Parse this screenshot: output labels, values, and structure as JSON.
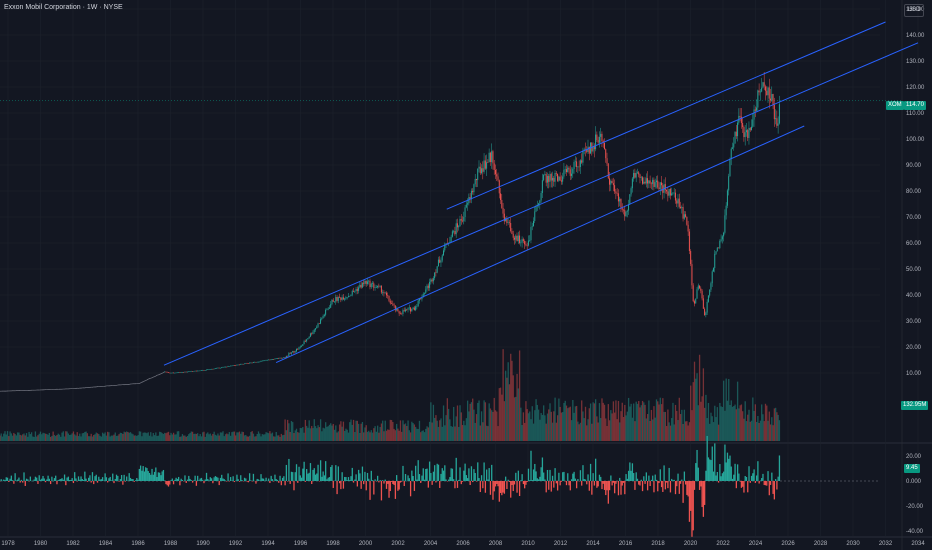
{
  "header": {
    "title": "Exxon Mobil Corporation · 1W · NYSE",
    "currency": "USD"
  },
  "price_tags": {
    "symbol": "XOM",
    "last_price": "114.70",
    "volume_value": "132.95M",
    "oscillator_value": "9.45"
  },
  "colors": {
    "background": "#131722",
    "up": "#26a69a",
    "down": "#ef5350",
    "channel": "#2962ff",
    "grid": "#1e222d",
    "last_price_tag": "#089981"
  },
  "chart_data": [
    {
      "type": "line",
      "name": "price-pane",
      "series_kind": "candlestick (weekly)",
      "x_unit": "year",
      "x_tick_labels": [
        "1978",
        "1980",
        "1982",
        "1984",
        "1986",
        "1988",
        "1990",
        "1992",
        "1994",
        "1996",
        "1998",
        "2000",
        "2002",
        "2004",
        "2006",
        "2008",
        "2010",
        "2012",
        "2014",
        "2016",
        "2018",
        "2020",
        "2022",
        "2024",
        "2026",
        "2028",
        "2030",
        "2032",
        "2034"
      ],
      "y_tick_labels": [
        "150.00",
        "140.00",
        "130.00",
        "120.00",
        "110.00",
        "100.00",
        "90.00",
        "80.00",
        "70.00",
        "60.00",
        "50.00",
        "40.00",
        "30.00",
        "20.00",
        "10.00"
      ],
      "ylim": [
        10,
        150
      ],
      "last_price": 114.7,
      "price_path": [
        [
          1977.5,
          3
        ],
        [
          1980,
          3.5
        ],
        [
          1982,
          4
        ],
        [
          1984,
          5
        ],
        [
          1986,
          6
        ],
        [
          1987.6,
          10.5
        ],
        [
          1988,
          10
        ],
        [
          1990,
          11
        ],
        [
          1992,
          13
        ],
        [
          1994,
          15
        ],
        [
          1995,
          16
        ],
        [
          1996,
          20
        ],
        [
          1997,
          28
        ],
        [
          1998,
          38
        ],
        [
          1999,
          40
        ],
        [
          2000,
          45
        ],
        [
          2001,
          42
        ],
        [
          2002,
          33
        ],
        [
          2003,
          35
        ],
        [
          2004,
          45
        ],
        [
          2005,
          60
        ],
        [
          2006,
          70
        ],
        [
          2007,
          88
        ],
        [
          2007.8,
          94
        ],
        [
          2008.5,
          70
        ],
        [
          2009.2,
          62
        ],
        [
          2010,
          60
        ],
        [
          2011,
          85
        ],
        [
          2012,
          85
        ],
        [
          2013,
          90
        ],
        [
          2014.5,
          102
        ],
        [
          2015,
          85
        ],
        [
          2016,
          70
        ],
        [
          2016.5,
          88
        ],
        [
          2017,
          84
        ],
        [
          2018,
          82
        ],
        [
          2019,
          78
        ],
        [
          2019.8,
          68
        ],
        [
          2020.2,
          35
        ],
        [
          2020.5,
          45
        ],
        [
          2020.9,
          32
        ],
        [
          2021.5,
          55
        ],
        [
          2022,
          62
        ],
        [
          2022.5,
          95
        ],
        [
          2023,
          108
        ],
        [
          2023.5,
          100
        ],
        [
          2024,
          113
        ],
        [
          2024.5,
          122
        ],
        [
          2025,
          115
        ],
        [
          2025.3,
          104
        ],
        [
          2025.5,
          114.7
        ]
      ],
      "channel_lines": [
        {
          "name": "upper",
          "points": [
            [
              2005,
              73
            ],
            [
              2032,
              145
            ]
          ]
        },
        {
          "name": "middle",
          "points": [
            [
              1987.6,
              13
            ],
            [
              2034,
              137
            ]
          ]
        },
        {
          "name": "lower",
          "points": [
            [
              1994.5,
              14
            ],
            [
              2027,
              105
            ]
          ]
        }
      ]
    },
    {
      "type": "bar",
      "name": "volume-pane",
      "last_value": "132.95M",
      "colors": [
        "#26a69a",
        "#ef5350"
      ]
    },
    {
      "type": "bar",
      "name": "oscillator-pane",
      "y_tick_labels": [
        "20.00",
        "0.000",
        "-20.00",
        "-40.00"
      ],
      "ylim": [
        -45,
        22
      ],
      "last_value": 9.45
    }
  ]
}
